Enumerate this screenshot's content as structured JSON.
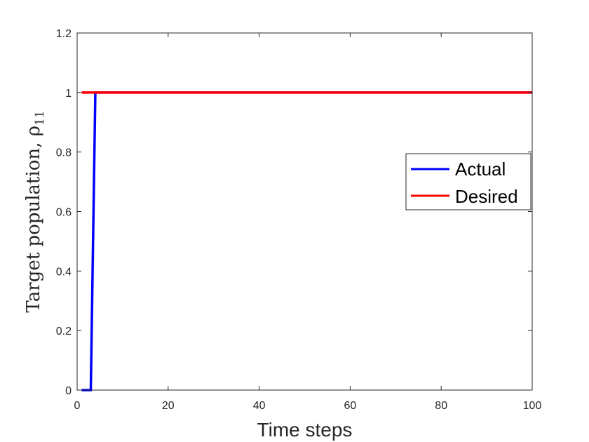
{
  "chart_data": {
    "type": "line",
    "title": "",
    "xlabel": "Time steps",
    "ylabel": "Target population, ρ",
    "ylabel_subscript": "11",
    "xlim": [
      0,
      100
    ],
    "ylim": [
      0,
      1.2
    ],
    "xticks": [
      0,
      20,
      40,
      60,
      80,
      100
    ],
    "yticks": [
      0,
      0.2,
      0.4,
      0.6,
      0.8,
      1,
      1.2
    ],
    "grid": false,
    "legend": "right",
    "series": [
      {
        "name": "Actual",
        "color": "#0000ff",
        "x": [
          1,
          2,
          3,
          4,
          5,
          10,
          20,
          30,
          40,
          50,
          60,
          70,
          80,
          90,
          100
        ],
        "y": [
          0,
          0,
          0,
          1,
          1,
          1,
          1,
          1,
          1,
          1,
          1,
          1,
          1,
          1,
          1
        ]
      },
      {
        "name": "Desired",
        "color": "#ff0000",
        "x": [
          1,
          100
        ],
        "y": [
          1,
          1
        ]
      }
    ]
  }
}
